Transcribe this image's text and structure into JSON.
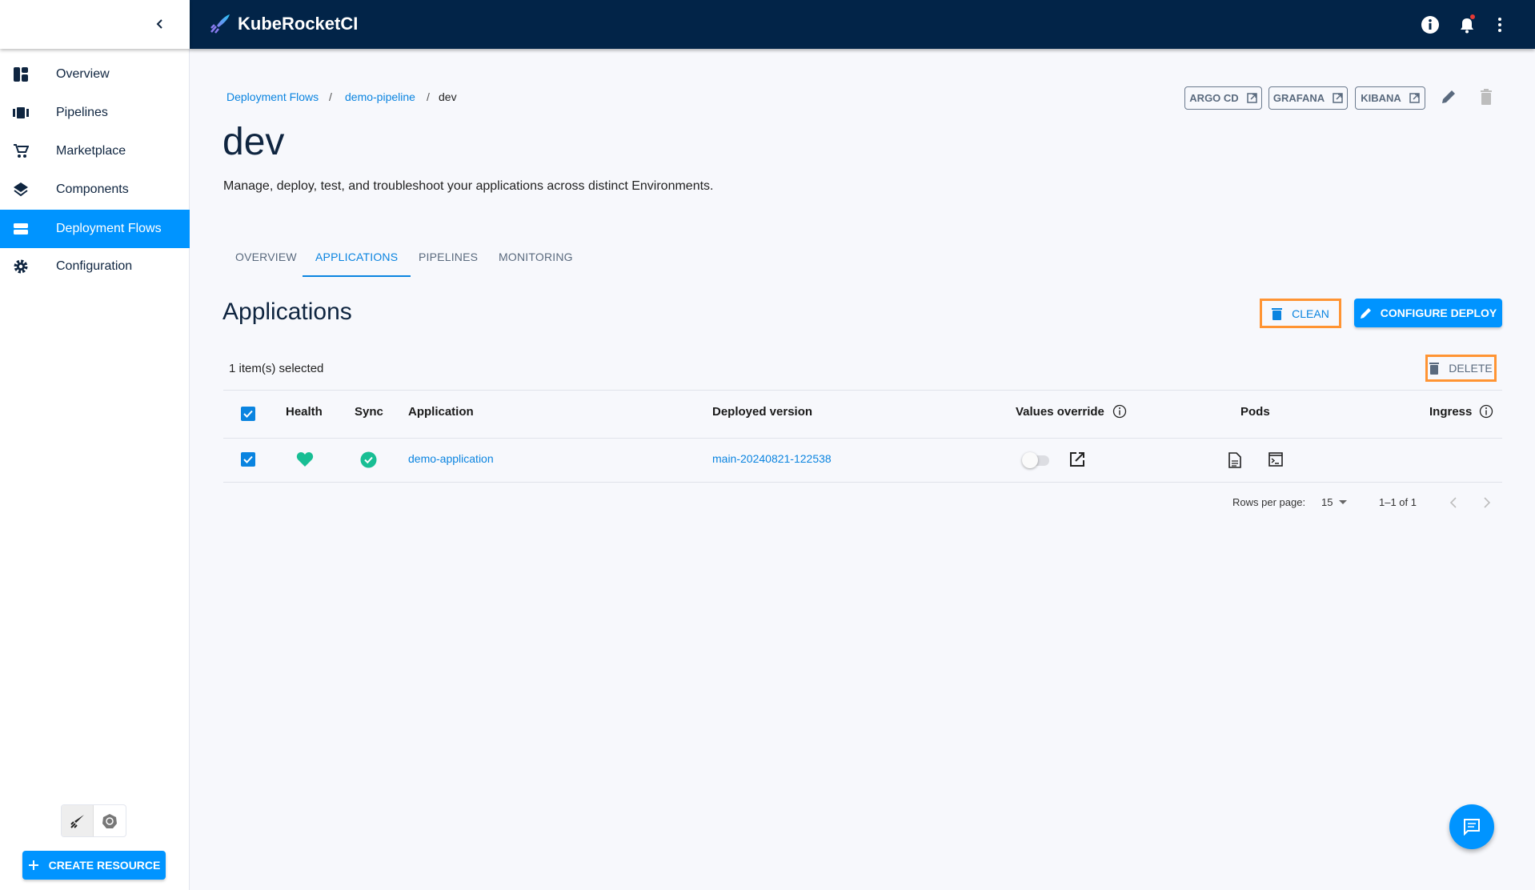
{
  "app": {
    "title": "KubeRocketCI"
  },
  "sidebar": {
    "items": [
      {
        "label": "Overview",
        "icon": "dashboard-icon"
      },
      {
        "label": "Pipelines",
        "icon": "pipelines-icon"
      },
      {
        "label": "Marketplace",
        "icon": "cart-icon"
      },
      {
        "label": "Components",
        "icon": "layers-icon"
      },
      {
        "label": "Deployment Flows",
        "icon": "deployment-flows-icon",
        "active": true
      },
      {
        "label": "Configuration",
        "icon": "gear-icon"
      }
    ],
    "create_resource": "CREATE RESOURCE"
  },
  "breadcrumb": {
    "items": [
      "Deployment Flows",
      "demo-pipeline"
    ],
    "current": "dev"
  },
  "page": {
    "title": "dev",
    "description": "Manage, deploy, test, and troubleshoot your applications across distinct Environments."
  },
  "links": {
    "argo": "ARGO CD",
    "grafana": "GRAFANA",
    "kibana": "KIBANA"
  },
  "tabs": [
    "Overview",
    "Applications",
    "Pipelines",
    "Monitoring"
  ],
  "active_tab": "Applications",
  "section": {
    "title": "Applications",
    "clean": "CLEAN",
    "configure": "CONFIGURE DEPLOY",
    "selected": "1 item(s) selected",
    "delete": "DELETE"
  },
  "table": {
    "headers": {
      "health": "Health",
      "sync": "Sync",
      "application": "Application",
      "version": "Deployed version",
      "values": "Values override",
      "pods": "Pods",
      "ingress": "Ingress"
    },
    "rows": [
      {
        "application": "demo-application",
        "version": "main-20240821-122538",
        "health": "healthy",
        "sync": "synced",
        "values_override": false,
        "selected": true
      }
    ]
  },
  "pagination": {
    "rows_label": "Rows per page:",
    "rows_value": "15",
    "range": "1–1 of 1"
  },
  "colors": {
    "accent": "#0094ff",
    "header": "#022448",
    "highlight": "#ff9433",
    "healthy": "#18be94"
  }
}
